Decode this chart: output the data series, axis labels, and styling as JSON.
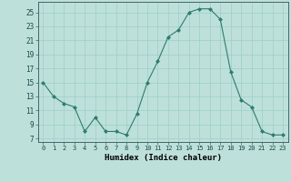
{
  "x": [
    0,
    1,
    2,
    3,
    4,
    5,
    6,
    7,
    8,
    9,
    10,
    11,
    12,
    13,
    14,
    15,
    16,
    17,
    18,
    19,
    20,
    21,
    22,
    23
  ],
  "y": [
    15,
    13,
    12,
    11.5,
    8,
    10,
    8,
    8,
    7.5,
    10.5,
    15,
    18,
    21.5,
    22.5,
    25,
    25.5,
    25.5,
    24,
    16.5,
    12.5,
    11.5,
    8,
    7.5,
    7.5
  ],
  "line_color": "#2d7d6f",
  "marker": "D",
  "marker_size": 2.0,
  "bg_color": "#bde0da",
  "grid_color": "#9ecec8",
  "xlabel": "Humidex (Indice chaleur)",
  "xlim": [
    -0.5,
    23.5
  ],
  "ylim": [
    6.5,
    26.5
  ],
  "yticks": [
    7,
    9,
    11,
    13,
    15,
    17,
    19,
    21,
    23,
    25
  ],
  "xticks": [
    0,
    1,
    2,
    3,
    4,
    5,
    6,
    7,
    8,
    9,
    10,
    11,
    12,
    13,
    14,
    15,
    16,
    17,
    18,
    19,
    20,
    21,
    22,
    23
  ]
}
